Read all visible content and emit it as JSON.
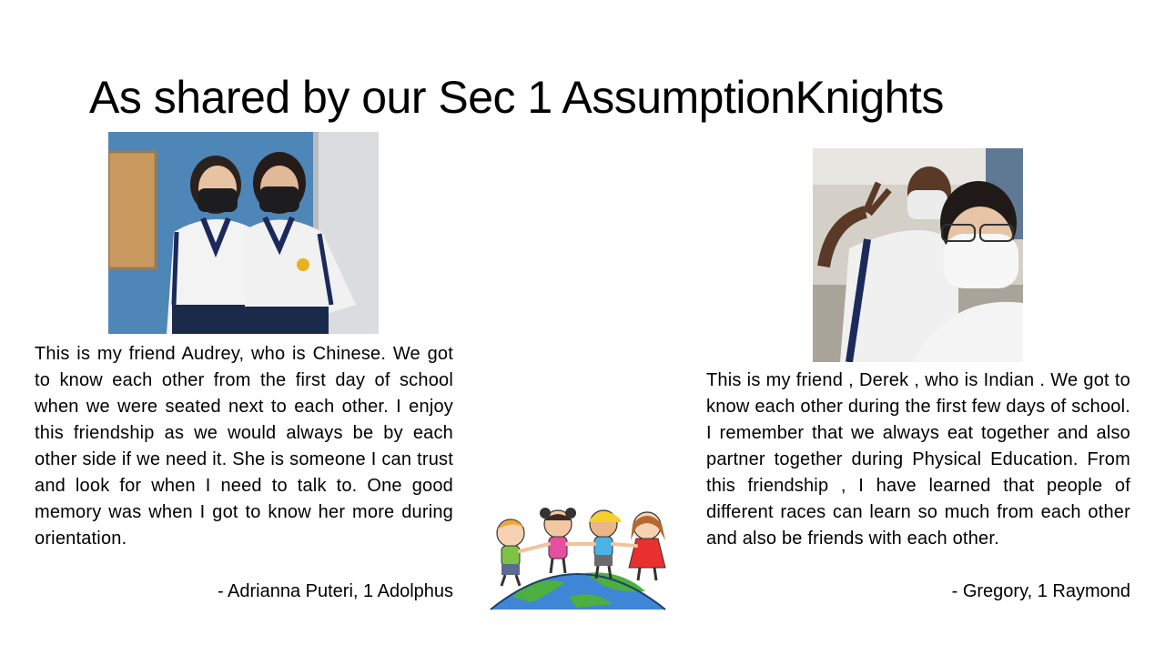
{
  "slide": {
    "title": "As shared by our Sec 1 AssumptionKnights"
  },
  "left": {
    "paragraph": "This is my friend Audrey, who is Chinese. We got to know each other from the first day of school when we were seated next to each other. I enjoy this friendship as we would always be by each other side if we need it. She is someone I can trust and look for when I need to talk to. One good memory was when I got to know her more during orientation.",
    "signature": "- Adrianna Puteri, 1 Adolphus"
  },
  "right": {
    "paragraph": "This is my friend , Derek , who is Indian . We got to know each other during the first few days of school. I remember that we always eat together and also partner together during Physical Education. From this friendship , I have learned that people of different races can learn so much from each other and also be friends with each other.",
    "signature": "- Gregory, 1 Raymond"
  }
}
